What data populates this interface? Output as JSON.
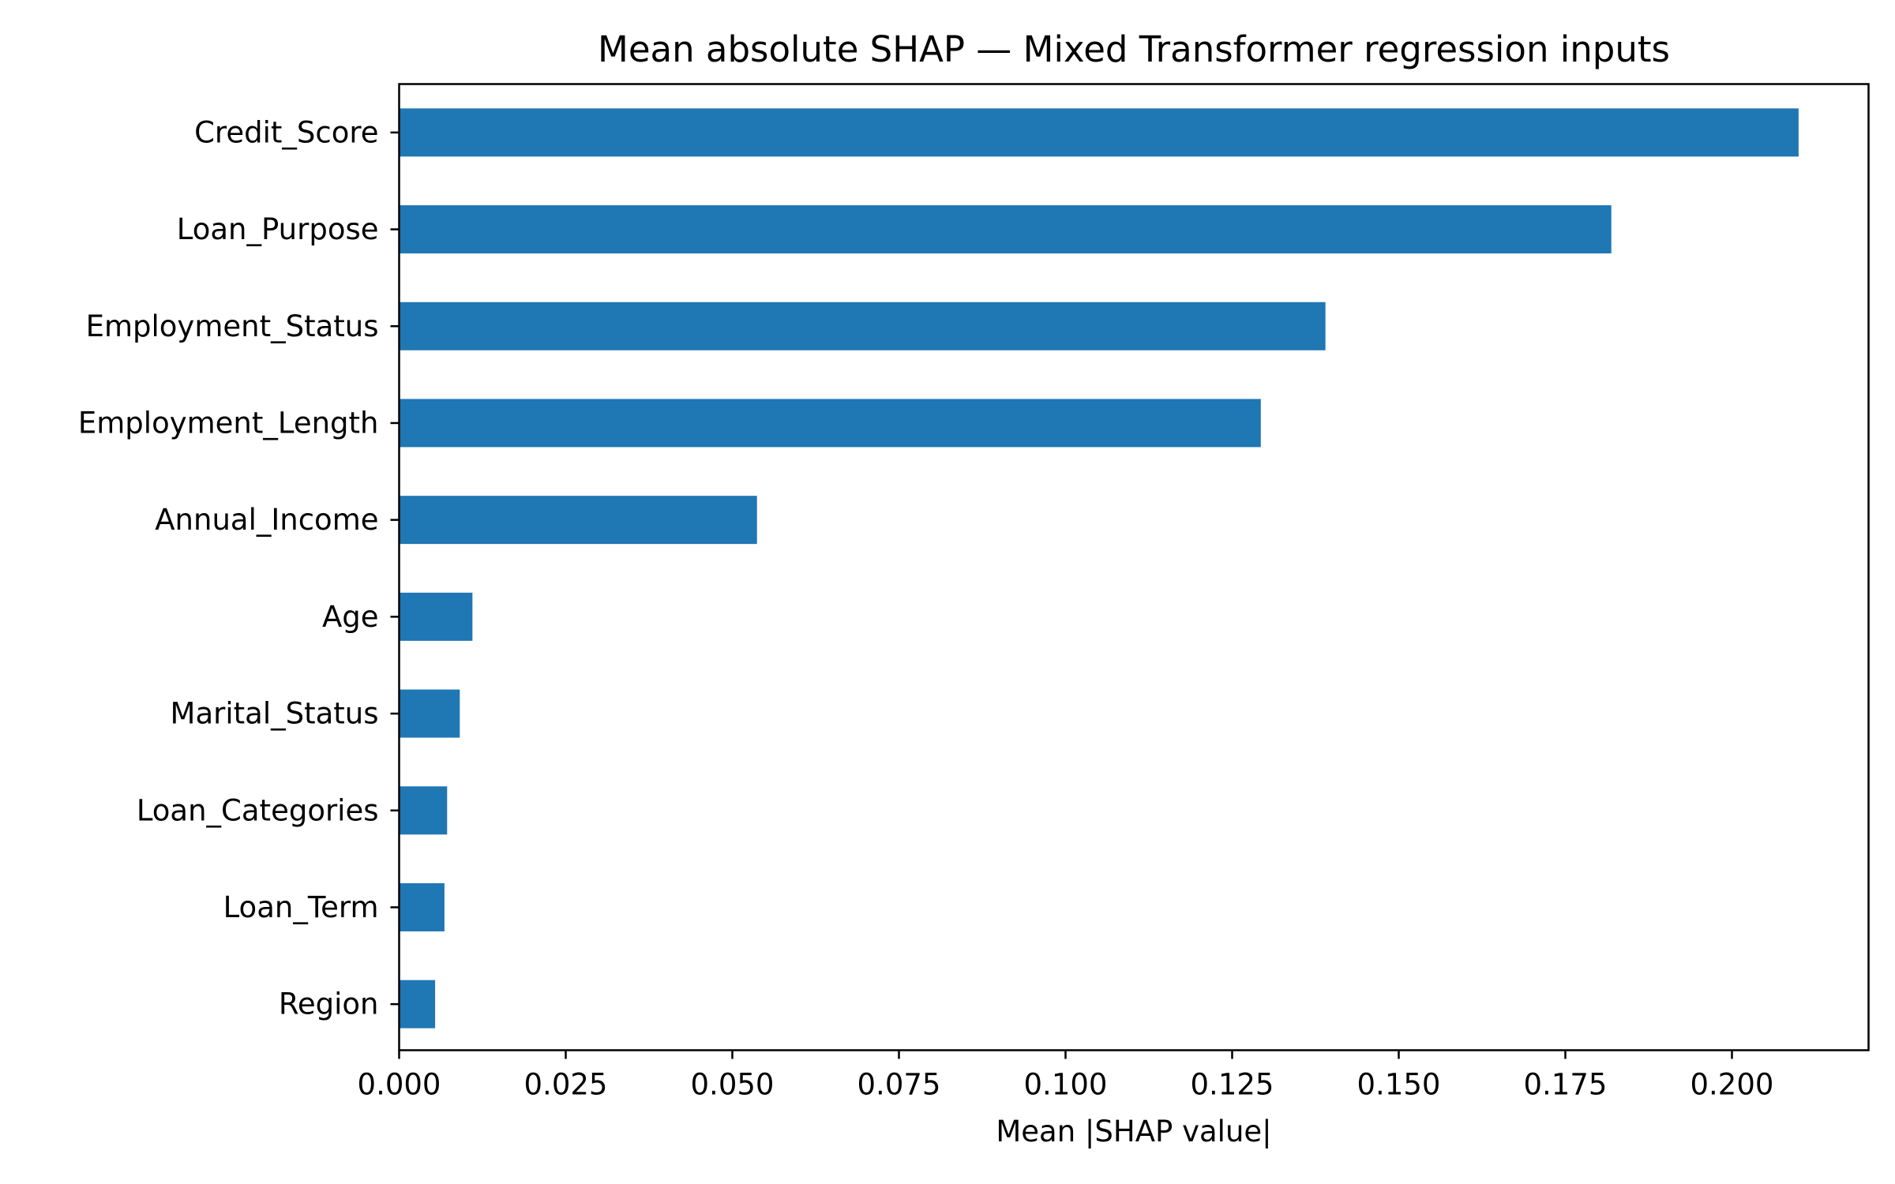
{
  "chart_data": {
    "type": "bar",
    "orientation": "horizontal",
    "title": "Mean absolute SHAP — Mixed Transformer regression inputs",
    "xlabel": "Mean |SHAP value|",
    "ylabel": "",
    "categories": [
      "Credit_Score",
      "Loan_Purpose",
      "Employment_Status",
      "Employment_Length",
      "Annual_Income",
      "Age",
      "Marital_Status",
      "Loan_Categories",
      "Loan_Term",
      "Region"
    ],
    "values": [
      0.21,
      0.1819,
      0.139,
      0.1293,
      0.0537,
      0.011,
      0.0091,
      0.0072,
      0.0068,
      0.0054
    ],
    "xlim": [
      0,
      0.2205
    ],
    "x_ticks": [
      0.0,
      0.025,
      0.05,
      0.075,
      0.1,
      0.125,
      0.15,
      0.175,
      0.2
    ],
    "x_tick_labels": [
      "0.000",
      "0.025",
      "0.050",
      "0.075",
      "0.100",
      "0.125",
      "0.150",
      "0.175",
      "0.200"
    ],
    "bar_color": "#1f77b4",
    "grid": false,
    "legend": "none"
  }
}
